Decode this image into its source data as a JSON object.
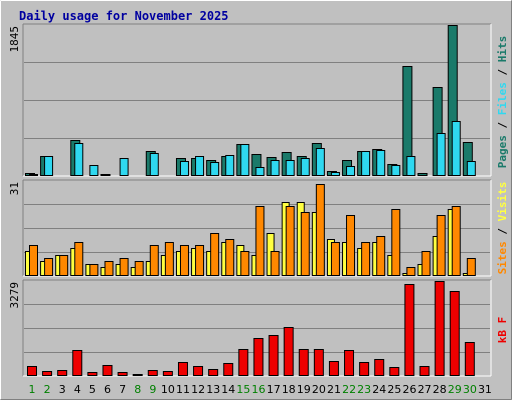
{
  "colors": {
    "background": "#c0c0c0",
    "title": "#0000a0",
    "pages": "#1a7a6a",
    "files": "#2fd8f0",
    "hits": "#1a7a6a",
    "sites": "#ff8800",
    "visits": "#ffff40",
    "kbf": "#ee0000",
    "day_weekday": "#000000",
    "day_weekend": "#008000"
  },
  "chart_data": [
    {
      "type": "bar",
      "title": "Daily usage for November 2025",
      "categories": [
        "1",
        "2",
        "3",
        "4",
        "5",
        "6",
        "7",
        "8",
        "9",
        "10",
        "11",
        "12",
        "13",
        "14",
        "15",
        "16",
        "17",
        "18",
        "19",
        "20",
        "21",
        "22",
        "23",
        "24",
        "25",
        "26",
        "27",
        "28",
        "29",
        "30",
        "31"
      ],
      "weekend_days": [
        "1",
        "2",
        "8",
        "9",
        "15",
        "16",
        "22",
        "23",
        "29",
        "30"
      ],
      "ymax_label": "1845",
      "ylim": [
        0,
        1845
      ],
      "side_label": [
        "Pages",
        "Files",
        "Hits"
      ],
      "series": [
        {
          "key": "pages",
          "values": [
            40,
            0,
            10,
            0,
            0,
            20,
            0,
            10,
            0,
            0,
            0,
            0,
            0,
            0,
            0,
            0,
            0,
            0,
            0,
            0,
            0,
            0,
            0,
            0,
            0,
            0,
            40,
            0,
            0,
            0,
            0
          ]
        },
        {
          "key": "hits",
          "values": [
            40,
            250,
            0,
            440,
            0,
            20,
            0,
            10,
            310,
            0,
            220,
            220,
            190,
            250,
            390,
            270,
            230,
            290,
            250,
            400,
            60,
            190,
            310,
            330,
            150,
            1340,
            40,
            1090,
            1845,
            410,
            0
          ]
        },
        {
          "key": "files",
          "values": [
            20,
            250,
            0,
            400,
            130,
            0,
            220,
            0,
            280,
            0,
            180,
            250,
            170,
            260,
            390,
            110,
            200,
            200,
            220,
            340,
            50,
            120,
            300,
            320,
            130,
            240,
            0,
            530,
            670,
            180,
            0
          ]
        }
      ]
    },
    {
      "type": "bar",
      "categories": [
        "1",
        "2",
        "3",
        "4",
        "5",
        "6",
        "7",
        "8",
        "9",
        "10",
        "11",
        "12",
        "13",
        "14",
        "15",
        "16",
        "17",
        "18",
        "19",
        "20",
        "21",
        "22",
        "23",
        "24",
        "25",
        "26",
        "27",
        "28",
        "29",
        "30",
        "31"
      ],
      "ymax_label": "31",
      "ylim": [
        0,
        31
      ],
      "side_label": [
        "Sites",
        "Visits"
      ],
      "series": [
        {
          "key": "visits",
          "values": [
            8,
            5,
            7,
            9,
            4,
            3,
            4,
            3,
            5,
            7,
            8,
            9,
            8,
            11,
            10,
            7,
            14,
            24,
            24,
            21,
            12,
            11,
            9,
            11,
            7,
            1,
            4,
            13,
            22,
            1,
            0
          ]
        },
        {
          "key": "sites",
          "values": [
            10,
            6,
            7,
            11,
            4,
            5,
            6,
            5,
            10,
            11,
            10,
            10,
            14,
            12,
            8,
            23,
            8,
            23,
            21,
            30,
            11,
            20,
            11,
            13,
            22,
            3,
            8,
            20,
            23,
            6,
            0
          ]
        }
      ]
    },
    {
      "type": "bar",
      "categories": [
        "1",
        "2",
        "3",
        "4",
        "5",
        "6",
        "7",
        "8",
        "9",
        "10",
        "11",
        "12",
        "13",
        "14",
        "15",
        "16",
        "17",
        "18",
        "19",
        "20",
        "21",
        "22",
        "23",
        "24",
        "25",
        "26",
        "27",
        "28",
        "29",
        "30",
        "31"
      ],
      "ymax_label": "3279",
      "ylim": [
        0,
        3279
      ],
      "side_label": [
        "kB F"
      ],
      "series": [
        {
          "key": "kbf",
          "values": [
            330,
            160,
            220,
            900,
            130,
            370,
            140,
            55,
            190,
            160,
            490,
            330,
            250,
            460,
            920,
            1320,
            1400,
            1690,
            930,
            940,
            520,
            890,
            470,
            600,
            300,
            3170,
            330,
            3270,
            2950,
            1170,
            0
          ]
        }
      ]
    }
  ]
}
